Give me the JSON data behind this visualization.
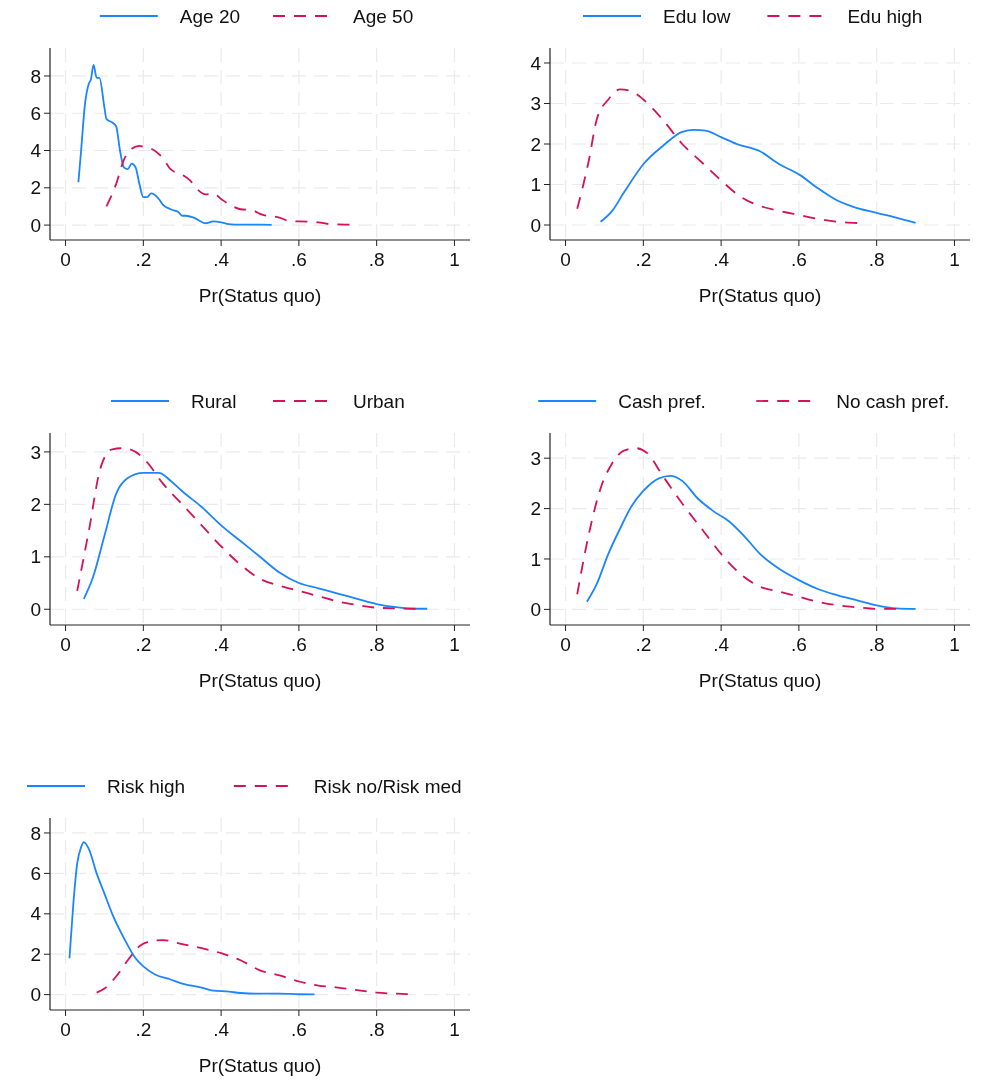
{
  "chart_data": [
    {
      "type": "line",
      "xlabel": "Pr(Status quo)",
      "xlim": [
        -0.04,
        1.04
      ],
      "ylim": [
        -0.8,
        9.5
      ],
      "xticks": [
        {
          "value": 0,
          "label": "0"
        },
        {
          "value": 0.2,
          "label": ".2"
        },
        {
          "value": 0.4,
          "label": ".4"
        },
        {
          "value": 0.6,
          "label": ".6"
        },
        {
          "value": 0.8,
          "label": ".8"
        },
        {
          "value": 1,
          "label": "1"
        }
      ],
      "yticks": [
        0,
        2,
        4,
        6,
        8
      ],
      "grid": true,
      "legend": "top",
      "marker": "none",
      "series": [
        {
          "name": "Age 20",
          "color": "#1a85ff",
          "line_style": "solid",
          "x": [
            0.033,
            0.04,
            0.05,
            0.06,
            0.065,
            0.072,
            0.08,
            0.087,
            0.1,
            0.105,
            0.12,
            0.13,
            0.14,
            0.15,
            0.16,
            0.17,
            0.18,
            0.19,
            0.2,
            0.21,
            0.22,
            0.24,
            0.25,
            0.27,
            0.29,
            0.3,
            0.31,
            0.33,
            0.36,
            0.38,
            0.4,
            0.42,
            0.45,
            0.5,
            0.53
          ],
          "values": [
            2.3,
            4,
            6.5,
            7.6,
            7.8,
            8.6,
            7.9,
            7.9,
            6.3,
            5.7,
            5.5,
            5.3,
            4,
            3.1,
            3,
            3.3,
            3.1,
            2.2,
            1.5,
            1.5,
            1.7,
            1.4,
            1.1,
            0.85,
            0.7,
            0.5,
            0.5,
            0.4,
            0.1,
            0.2,
            0.15,
            0.05,
            0.02,
            0.02,
            0.01
          ]
        },
        {
          "name": "Age 50",
          "color": "#d41159",
          "line_style": "dashed",
          "x": [
            0.105,
            0.13,
            0.15,
            0.17,
            0.19,
            0.2,
            0.22,
            0.25,
            0.27,
            0.3,
            0.32,
            0.34,
            0.36,
            0.38,
            0.4,
            0.43,
            0.45,
            0.48,
            0.5,
            0.55,
            0.58,
            0.6,
            0.65,
            0.68,
            0.73
          ],
          "values": [
            1,
            2.2,
            3.5,
            4.1,
            4.25,
            4.2,
            4.1,
            3.6,
            3,
            2.7,
            2.4,
            1.9,
            1.65,
            1.7,
            1.4,
            1,
            0.85,
            0.8,
            0.6,
            0.4,
            0.2,
            0.2,
            0.15,
            0.05,
            0.02
          ]
        }
      ]
    },
    {
      "type": "line",
      "xlabel": "Pr(Status quo)",
      "xlim": [
        -0.04,
        1.04
      ],
      "ylim": [
        -0.37,
        4.37
      ],
      "xticks": [
        {
          "value": 0,
          "label": "0"
        },
        {
          "value": 0.2,
          "label": ".2"
        },
        {
          "value": 0.4,
          "label": ".4"
        },
        {
          "value": 0.6,
          "label": ".6"
        },
        {
          "value": 0.8,
          "label": ".8"
        },
        {
          "value": 1,
          "label": "1"
        }
      ],
      "yticks": [
        0,
        1,
        2,
        3,
        4
      ],
      "grid": true,
      "legend": "top",
      "marker": "none",
      "series": [
        {
          "name": "Edu low",
          "color": "#1a85ff",
          "line_style": "solid",
          "x": [
            0.09,
            0.12,
            0.15,
            0.2,
            0.25,
            0.3,
            0.33,
            0.36,
            0.4,
            0.44,
            0.5,
            0.55,
            0.6,
            0.65,
            0.7,
            0.74,
            0.8,
            0.85,
            0.9
          ],
          "values": [
            0.08,
            0.35,
            0.8,
            1.5,
            1.95,
            2.3,
            2.35,
            2.33,
            2.17,
            2,
            1.82,
            1.5,
            1.25,
            0.9,
            0.6,
            0.45,
            0.3,
            0.18,
            0.05
          ]
        },
        {
          "name": "Edu high",
          "color": "#d41159",
          "line_style": "dashed",
          "x": [
            0.03,
            0.06,
            0.08,
            0.11,
            0.14,
            0.17,
            0.2,
            0.25,
            0.3,
            0.35,
            0.4,
            0.45,
            0.5,
            0.55,
            0.6,
            0.65,
            0.7,
            0.75
          ],
          "values": [
            0.4,
            1.6,
            2.6,
            3.1,
            3.35,
            3.3,
            3.1,
            2.6,
            2,
            1.55,
            1.1,
            0.7,
            0.47,
            0.35,
            0.25,
            0.15,
            0.08,
            0.05
          ]
        }
      ]
    },
    {
      "type": "line",
      "xlabel": "Pr(Status quo)",
      "xlim": [
        -0.04,
        1.04
      ],
      "ylim": [
        -0.3,
        3.36
      ],
      "xticks": [
        {
          "value": 0,
          "label": "0"
        },
        {
          "value": 0.2,
          "label": ".2"
        },
        {
          "value": 0.4,
          "label": ".4"
        },
        {
          "value": 0.6,
          "label": ".6"
        },
        {
          "value": 0.8,
          "label": ".8"
        },
        {
          "value": 1,
          "label": "1"
        }
      ],
      "yticks": [
        0,
        1,
        2,
        3
      ],
      "grid": true,
      "legend": "top",
      "marker": "none",
      "series": [
        {
          "name": "Rural",
          "color": "#1a85ff",
          "line_style": "solid",
          "x": [
            0.047,
            0.07,
            0.1,
            0.13,
            0.16,
            0.2,
            0.24,
            0.27,
            0.3,
            0.35,
            0.4,
            0.45,
            0.5,
            0.55,
            0.6,
            0.65,
            0.7,
            0.75,
            0.8,
            0.85,
            0.9,
            0.93
          ],
          "values": [
            0.2,
            0.6,
            1.4,
            2.2,
            2.5,
            2.6,
            2.6,
            2.45,
            2.25,
            1.95,
            1.6,
            1.3,
            1,
            0.7,
            0.5,
            0.4,
            0.3,
            0.2,
            0.1,
            0.04,
            0.01,
            0.01
          ]
        },
        {
          "name": "Urban",
          "color": "#d41159",
          "line_style": "dashed",
          "x": [
            0.03,
            0.06,
            0.09,
            0.12,
            0.15,
            0.18,
            0.21,
            0.25,
            0.3,
            0.35,
            0.4,
            0.45,
            0.5,
            0.55,
            0.6,
            0.65,
            0.7,
            0.75,
            0.8,
            0.9
          ],
          "values": [
            0.35,
            1.5,
            2.7,
            3.05,
            3.07,
            3,
            2.8,
            2.4,
            2,
            1.6,
            1.2,
            0.85,
            0.58,
            0.45,
            0.35,
            0.25,
            0.15,
            0.08,
            0.03,
            0.01
          ]
        }
      ]
    },
    {
      "type": "line",
      "xlabel": "Pr(Status quo)",
      "xlim": [
        -0.04,
        1.04
      ],
      "ylim": [
        -0.31,
        3.5
      ],
      "xticks": [
        {
          "value": 0,
          "label": "0"
        },
        {
          "value": 0.2,
          "label": ".2"
        },
        {
          "value": 0.4,
          "label": ".4"
        },
        {
          "value": 0.6,
          "label": ".6"
        },
        {
          "value": 0.8,
          "label": ".8"
        },
        {
          "value": 1,
          "label": "1"
        }
      ],
      "yticks": [
        0,
        1,
        2,
        3
      ],
      "grid": true,
      "legend": "top",
      "marker": "none",
      "series": [
        {
          "name": "Cash pref.",
          "color": "#1a85ff",
          "line_style": "solid",
          "x": [
            0.055,
            0.08,
            0.11,
            0.14,
            0.17,
            0.2,
            0.24,
            0.27,
            0.3,
            0.34,
            0.38,
            0.42,
            0.46,
            0.5,
            0.55,
            0.6,
            0.65,
            0.7,
            0.75,
            0.8,
            0.85,
            0.9
          ],
          "values": [
            0.15,
            0.5,
            1.1,
            1.6,
            2.05,
            2.35,
            2.6,
            2.65,
            2.55,
            2.2,
            1.95,
            1.75,
            1.45,
            1.1,
            0.8,
            0.58,
            0.4,
            0.28,
            0.18,
            0.08,
            0.02,
            0.01
          ]
        },
        {
          "name": "No cash pref.",
          "color": "#d41159",
          "line_style": "dashed",
          "x": [
            0.03,
            0.06,
            0.09,
            0.12,
            0.15,
            0.18,
            0.21,
            0.25,
            0.3,
            0.35,
            0.4,
            0.45,
            0.5,
            0.55,
            0.6,
            0.65,
            0.7,
            0.75,
            0.8,
            0.85
          ],
          "values": [
            0.3,
            1.5,
            2.4,
            2.9,
            3.15,
            3.2,
            3.1,
            2.65,
            2.1,
            1.6,
            1.1,
            0.7,
            0.45,
            0.35,
            0.25,
            0.15,
            0.08,
            0.04,
            0.01,
            0.01
          ]
        }
      ]
    },
    {
      "type": "line",
      "xlabel": "Pr(Status quo)",
      "xlim": [
        -0.04,
        1.04
      ],
      "ylim": [
        -0.76,
        8.74
      ],
      "xticks": [
        {
          "value": 0,
          "label": "0"
        },
        {
          "value": 0.2,
          "label": ".2"
        },
        {
          "value": 0.4,
          "label": ".4"
        },
        {
          "value": 0.6,
          "label": ".6"
        },
        {
          "value": 0.8,
          "label": ".8"
        },
        {
          "value": 1,
          "label": "1"
        }
      ],
      "yticks": [
        0,
        2,
        4,
        6,
        8
      ],
      "grid": true,
      "legend": "top",
      "marker": "none",
      "series": [
        {
          "name": "Risk high",
          "color": "#1a85ff",
          "line_style": "solid",
          "x": [
            0.01,
            0.02,
            0.03,
            0.04,
            0.047,
            0.06,
            0.08,
            0.1,
            0.12,
            0.15,
            0.18,
            0.2,
            0.23,
            0.27,
            0.3,
            0.35,
            0.38,
            0.42,
            0.45,
            0.5,
            0.55,
            0.6,
            0.64
          ],
          "values": [
            1.8,
            4.5,
            6.5,
            7.3,
            7.55,
            7.2,
            6,
            5,
            4,
            2.8,
            1.8,
            1.4,
            1,
            0.75,
            0.55,
            0.35,
            0.2,
            0.15,
            0.08,
            0.05,
            0.05,
            0.02,
            0.01
          ]
        },
        {
          "name": "Risk no/Risk med",
          "color": "#d41159",
          "line_style": "dashed",
          "x": [
            0.08,
            0.1,
            0.13,
            0.16,
            0.19,
            0.22,
            0.25,
            0.3,
            0.35,
            0.4,
            0.45,
            0.5,
            0.55,
            0.6,
            0.65,
            0.7,
            0.75,
            0.8,
            0.85,
            0.88
          ],
          "values": [
            0.1,
            0.3,
            0.9,
            1.7,
            2.4,
            2.65,
            2.7,
            2.5,
            2.3,
            2.05,
            1.7,
            1.2,
            0.95,
            0.65,
            0.45,
            0.35,
            0.22,
            0.1,
            0.05,
            0.03
          ]
        }
      ]
    }
  ]
}
